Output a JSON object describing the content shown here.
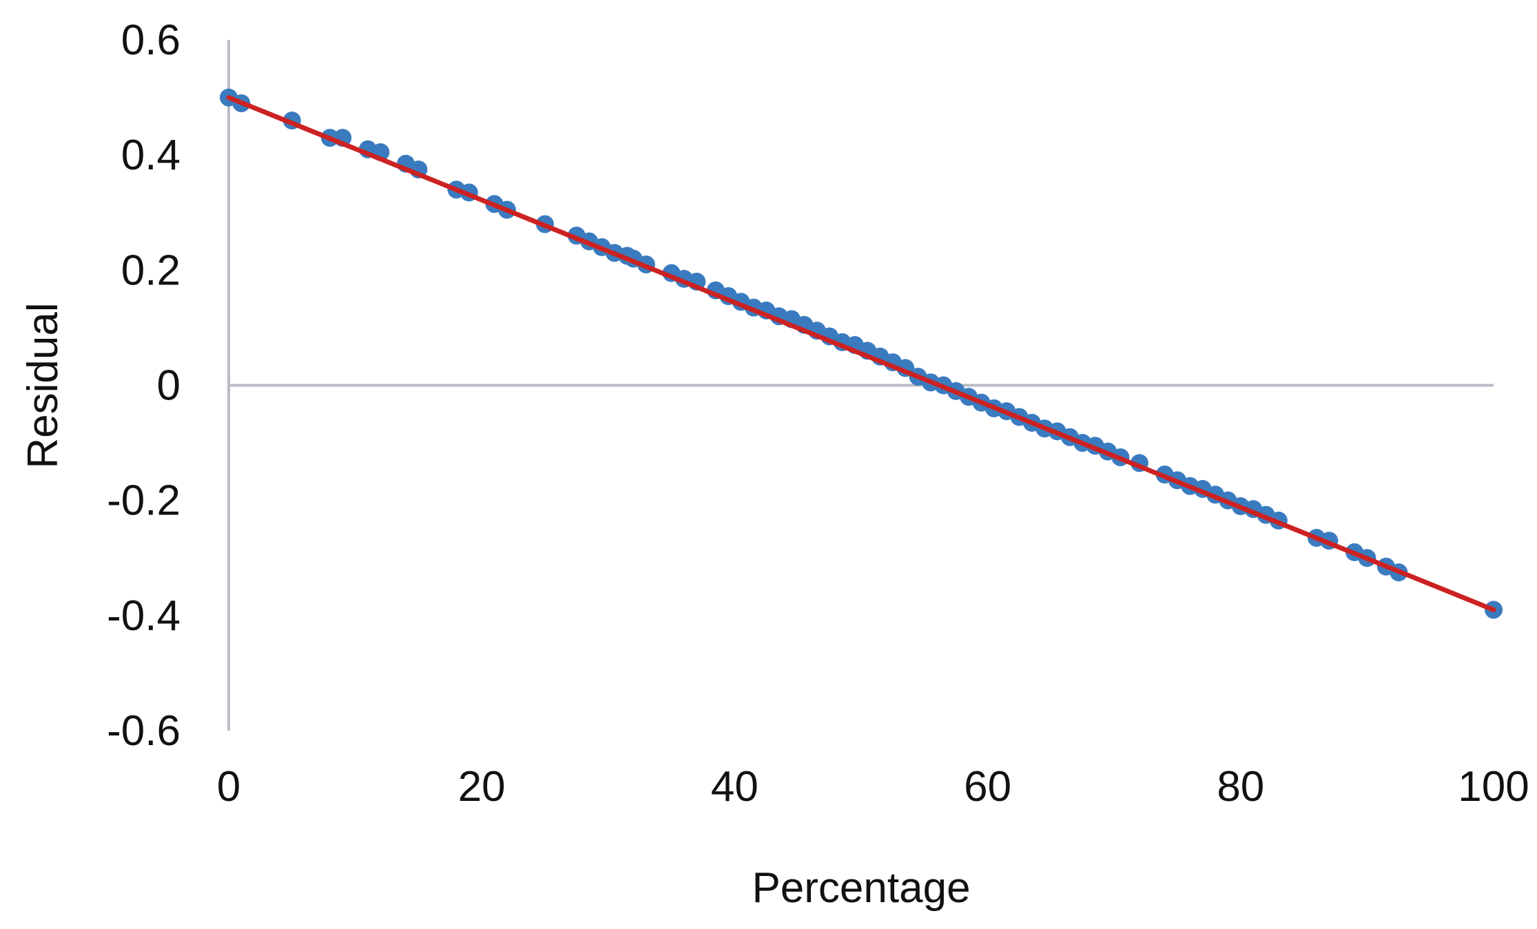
{
  "chart_data": {
    "type": "scatter",
    "title": "",
    "xlabel": "Percentage",
    "ylabel": "Residual",
    "xlim": [
      0,
      100
    ],
    "ylim": [
      -0.6,
      0.6
    ],
    "xticks": [
      "0",
      "20",
      "40",
      "60",
      "80",
      "100"
    ],
    "yticks": [
      "0.6",
      "0.4",
      "0.2",
      "0",
      "-0.2",
      "-0.4",
      "-0.6"
    ],
    "grid": false,
    "colors": {
      "points": "#3a7bbf",
      "trendline": "#cc2222",
      "axis": "#b8bcc4"
    },
    "trendline": {
      "x": [
        0,
        100
      ],
      "y": [
        0.5,
        -0.39
      ]
    },
    "series": [
      {
        "values_x": [
          0,
          1,
          5,
          8,
          9,
          11,
          12,
          14,
          15,
          18,
          19,
          21,
          22,
          25,
          27.5,
          28.5,
          29.5,
          30.5,
          31.5,
          32,
          33,
          35,
          36,
          37,
          38.5,
          39.5,
          40.5,
          41.5,
          42.5,
          43.5,
          44.5,
          45.5,
          46.5,
          47.5,
          48.5,
          49.5,
          50.5,
          51.5,
          52.5,
          53.5,
          54.5,
          55.5,
          56.5,
          57.5,
          58.5,
          59.5,
          60.5,
          61.5,
          62.5,
          63.5,
          64.5,
          65.5,
          66.5,
          67.5,
          68.5,
          69.5,
          70.5,
          72,
          74,
          75,
          76,
          77,
          78,
          79,
          80,
          81,
          82,
          83,
          86,
          87,
          89,
          90,
          91.5,
          92.5,
          100
        ],
        "values_y": [
          0.5,
          0.49,
          0.46,
          0.43,
          0.43,
          0.41,
          0.405,
          0.385,
          0.375,
          0.34,
          0.335,
          0.315,
          0.305,
          0.28,
          0.26,
          0.25,
          0.24,
          0.23,
          0.225,
          0.22,
          0.21,
          0.195,
          0.185,
          0.18,
          0.165,
          0.155,
          0.145,
          0.135,
          0.13,
          0.12,
          0.115,
          0.105,
          0.095,
          0.085,
          0.075,
          0.07,
          0.06,
          0.05,
          0.04,
          0.03,
          0.015,
          0.005,
          0.0,
          -0.01,
          -0.02,
          -0.03,
          -0.04,
          -0.045,
          -0.055,
          -0.065,
          -0.075,
          -0.08,
          -0.09,
          -0.1,
          -0.105,
          -0.115,
          -0.125,
          -0.135,
          -0.155,
          -0.165,
          -0.175,
          -0.18,
          -0.19,
          -0.2,
          -0.21,
          -0.215,
          -0.225,
          -0.235,
          -0.265,
          -0.27,
          -0.29,
          -0.3,
          -0.315,
          -0.325,
          -0.39
        ]
      }
    ]
  }
}
